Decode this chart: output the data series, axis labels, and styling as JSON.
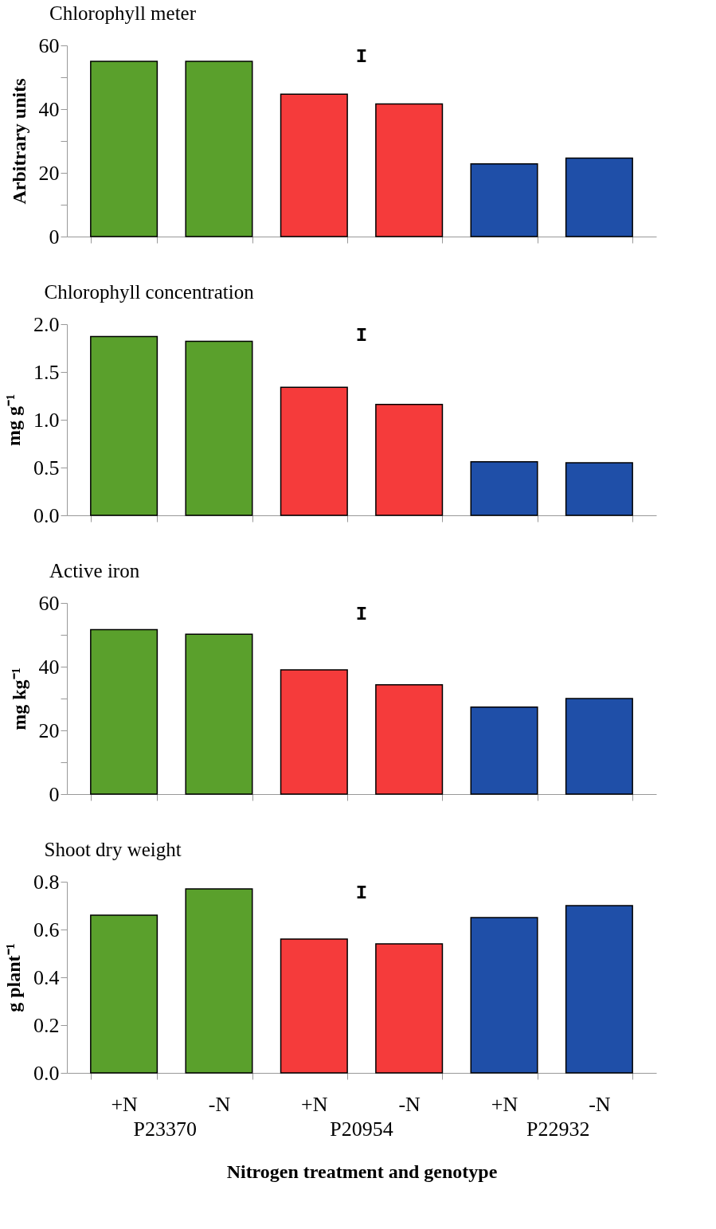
{
  "chart_data": [
    {
      "type": "bar",
      "title": "Chlorophyll meter",
      "ylabel": "Arbitrary units",
      "categories": [
        null,
        null,
        null,
        null,
        null,
        null
      ],
      "tick_labels": "y",
      "ylim": [
        0,
        60
      ],
      "yticks": [
        0,
        {
          "value": 10,
          "label": null
        },
        20,
        {
          "value": 30,
          "label": null
        },
        40,
        {
          "value": 50,
          "label": null
        },
        60
      ],
      "values": [
        55,
        55,
        44.7,
        41.6,
        22.8,
        24.6
      ],
      "colors": [
        "#5aa02c",
        "#5aa02c",
        "#f53b3b",
        "#f53b3b",
        "#1f4fa8",
        "#1f4fa8"
      ],
      "annotations": [
        "I"
      ]
    },
    {
      "type": "bar",
      "title": "Chlorophyll concentration",
      "ylabel": "mg g⁻¹",
      "categories": [
        null,
        null,
        null,
        null,
        null,
        null
      ],
      "tick_labels": "y",
      "ylim": [
        0,
        2
      ],
      "yticks": [
        {
          "value": 0,
          "label": "0.0"
        },
        0.5,
        {
          "value": 1,
          "label": "1.0"
        },
        1.5,
        {
          "value": 2,
          "label": "2.0"
        }
      ],
      "values": [
        1.87,
        1.82,
        1.34,
        1.16,
        0.56,
        0.55
      ],
      "colors": [
        "#5aa02c",
        "#5aa02c",
        "#f53b3b",
        "#f53b3b",
        "#1f4fa8",
        "#1f4fa8"
      ],
      "annotations": [
        "I"
      ]
    },
    {
      "type": "bar",
      "title": "Active iron",
      "ylabel": "mg kg⁻¹",
      "categories": [
        null,
        null,
        null,
        null,
        null,
        null
      ],
      "tick_labels": "y",
      "ylim": [
        0,
        60
      ],
      "yticks": [
        0,
        {
          "value": 10,
          "label": null
        },
        20,
        {
          "value": 30,
          "label": null
        },
        40,
        {
          "value": 50,
          "label": null
        },
        60
      ],
      "values": [
        51.6,
        50.2,
        39,
        34.3,
        27.3,
        30
      ],
      "colors": [
        "#5aa02c",
        "#5aa02c",
        "#f53b3b",
        "#f53b3b",
        "#1f4fa8",
        "#1f4fa8"
      ],
      "annotations": [
        "I"
      ]
    },
    {
      "type": "bar",
      "title": "Shoot dry weight",
      "ylabel": "g plant⁻¹",
      "xlabel": "Nitrogen treatment and genotype",
      "categories": [
        "+N",
        "-N",
        "+N",
        "-N",
        "+N",
        "-N"
      ],
      "ylim": [
        0,
        0.8
      ],
      "yticks": [
        {
          "value": 0,
          "label": "0.0"
        },
        0.2,
        0.4,
        0.6,
        0.8
      ],
      "values": [
        0.66,
        0.77,
        0.56,
        0.54,
        0.65,
        0.7
      ],
      "colors": [
        "#5aa02c",
        "#5aa02c",
        "#f53b3b",
        "#f53b3b",
        "#1f4fa8",
        "#1f4fa8"
      ],
      "annotations": [
        "I",
        "P23370",
        "P20954",
        "P22932"
      ]
    }
  ]
}
